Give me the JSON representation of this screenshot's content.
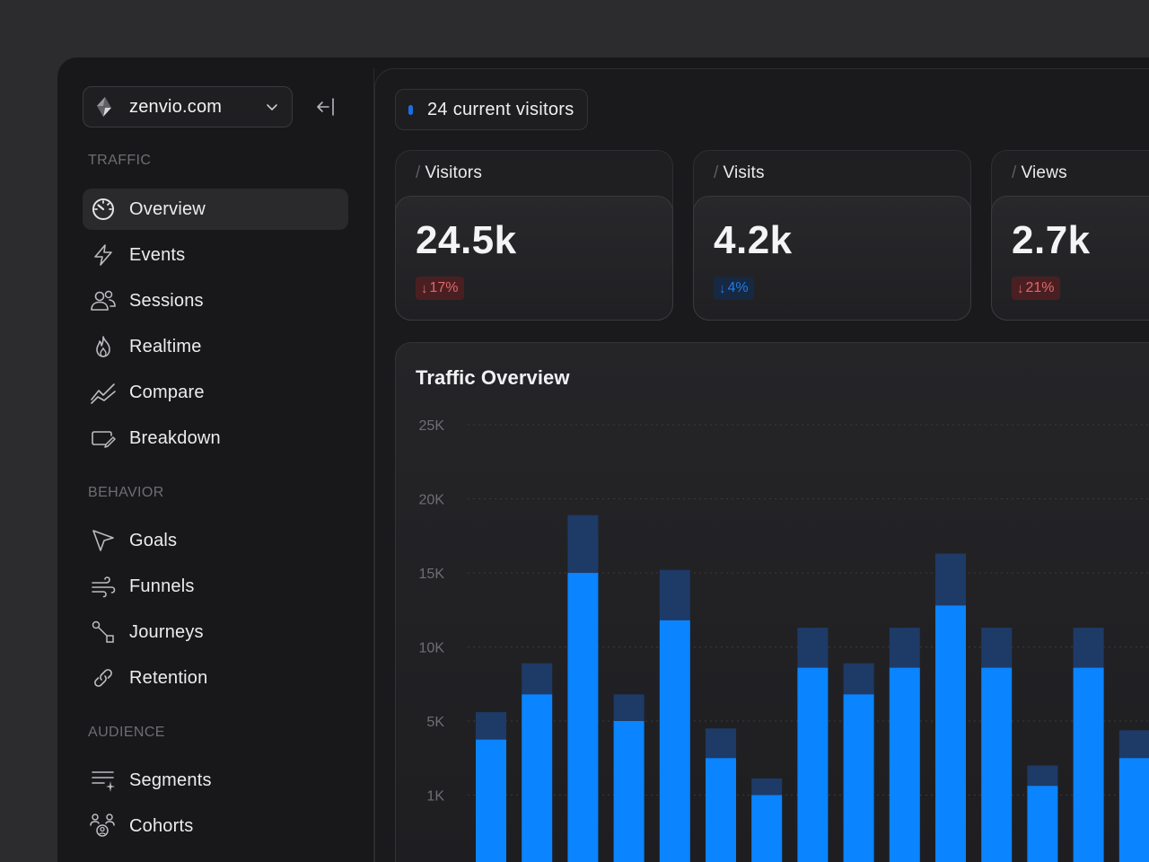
{
  "sidebar": {
    "site_name": "zenvio.com",
    "sections": {
      "traffic": "TRAFFIC",
      "behavior": "BEHAVIOR",
      "audience": "AUDIENCE"
    },
    "traffic_items": [
      {
        "label": "Overview",
        "icon": "gauge-icon",
        "active": true
      },
      {
        "label": "Events",
        "icon": "lightning-icon"
      },
      {
        "label": "Sessions",
        "icon": "users-icon"
      },
      {
        "label": "Realtime",
        "icon": "flame-icon"
      },
      {
        "label": "Compare",
        "icon": "trend-lines-icon"
      },
      {
        "label": "Breakdown",
        "icon": "tag-edit-icon"
      }
    ],
    "behavior_items": [
      {
        "label": "Goals",
        "icon": "cursor-pointer-icon"
      },
      {
        "label": "Funnels",
        "icon": "wind-icon"
      },
      {
        "label": "Journeys",
        "icon": "path-nodes-icon"
      },
      {
        "label": "Retention",
        "icon": "link-icon"
      }
    ],
    "audience_items": [
      {
        "label": "Segments",
        "icon": "list-sparkle-icon"
      },
      {
        "label": "Cohorts",
        "icon": "group-icon"
      }
    ]
  },
  "header": {
    "current_visitors": "24 current visitors"
  },
  "stats": [
    {
      "label": "Visitors",
      "value": "24.5k",
      "change": "17%",
      "direction": "down",
      "tone": "red"
    },
    {
      "label": "Visits",
      "value": "4.2k",
      "change": "4%",
      "direction": "down",
      "tone": "blue"
    },
    {
      "label": "Views",
      "value": "2.7k",
      "change": "21%",
      "direction": "down",
      "tone": "red"
    }
  ],
  "colors": {
    "bar_primary": "#0a84ff",
    "bar_secondary": "#1e3a66",
    "accent_red": "#e0686b",
    "accent_blue": "#1f7be8"
  },
  "chart_data": {
    "type": "bar",
    "title": "Traffic Overview",
    "y_tick_labels": [
      "25K",
      "20K",
      "15K",
      "10K",
      "5K",
      "1K"
    ],
    "series": [
      {
        "name": "primary",
        "values": [
          4000,
          6800,
          15000,
          5000,
          11800,
          3000,
          1000,
          8600,
          6800,
          8600,
          12800,
          8600,
          1500,
          8600,
          3000
        ]
      },
      {
        "name": "stacked",
        "values": [
          1600,
          2100,
          3900,
          1800,
          3400,
          1600,
          900,
          2700,
          2100,
          2700,
          3500,
          2700,
          1100,
          2700,
          1500
        ]
      }
    ],
    "stacked": true,
    "grid": true
  }
}
